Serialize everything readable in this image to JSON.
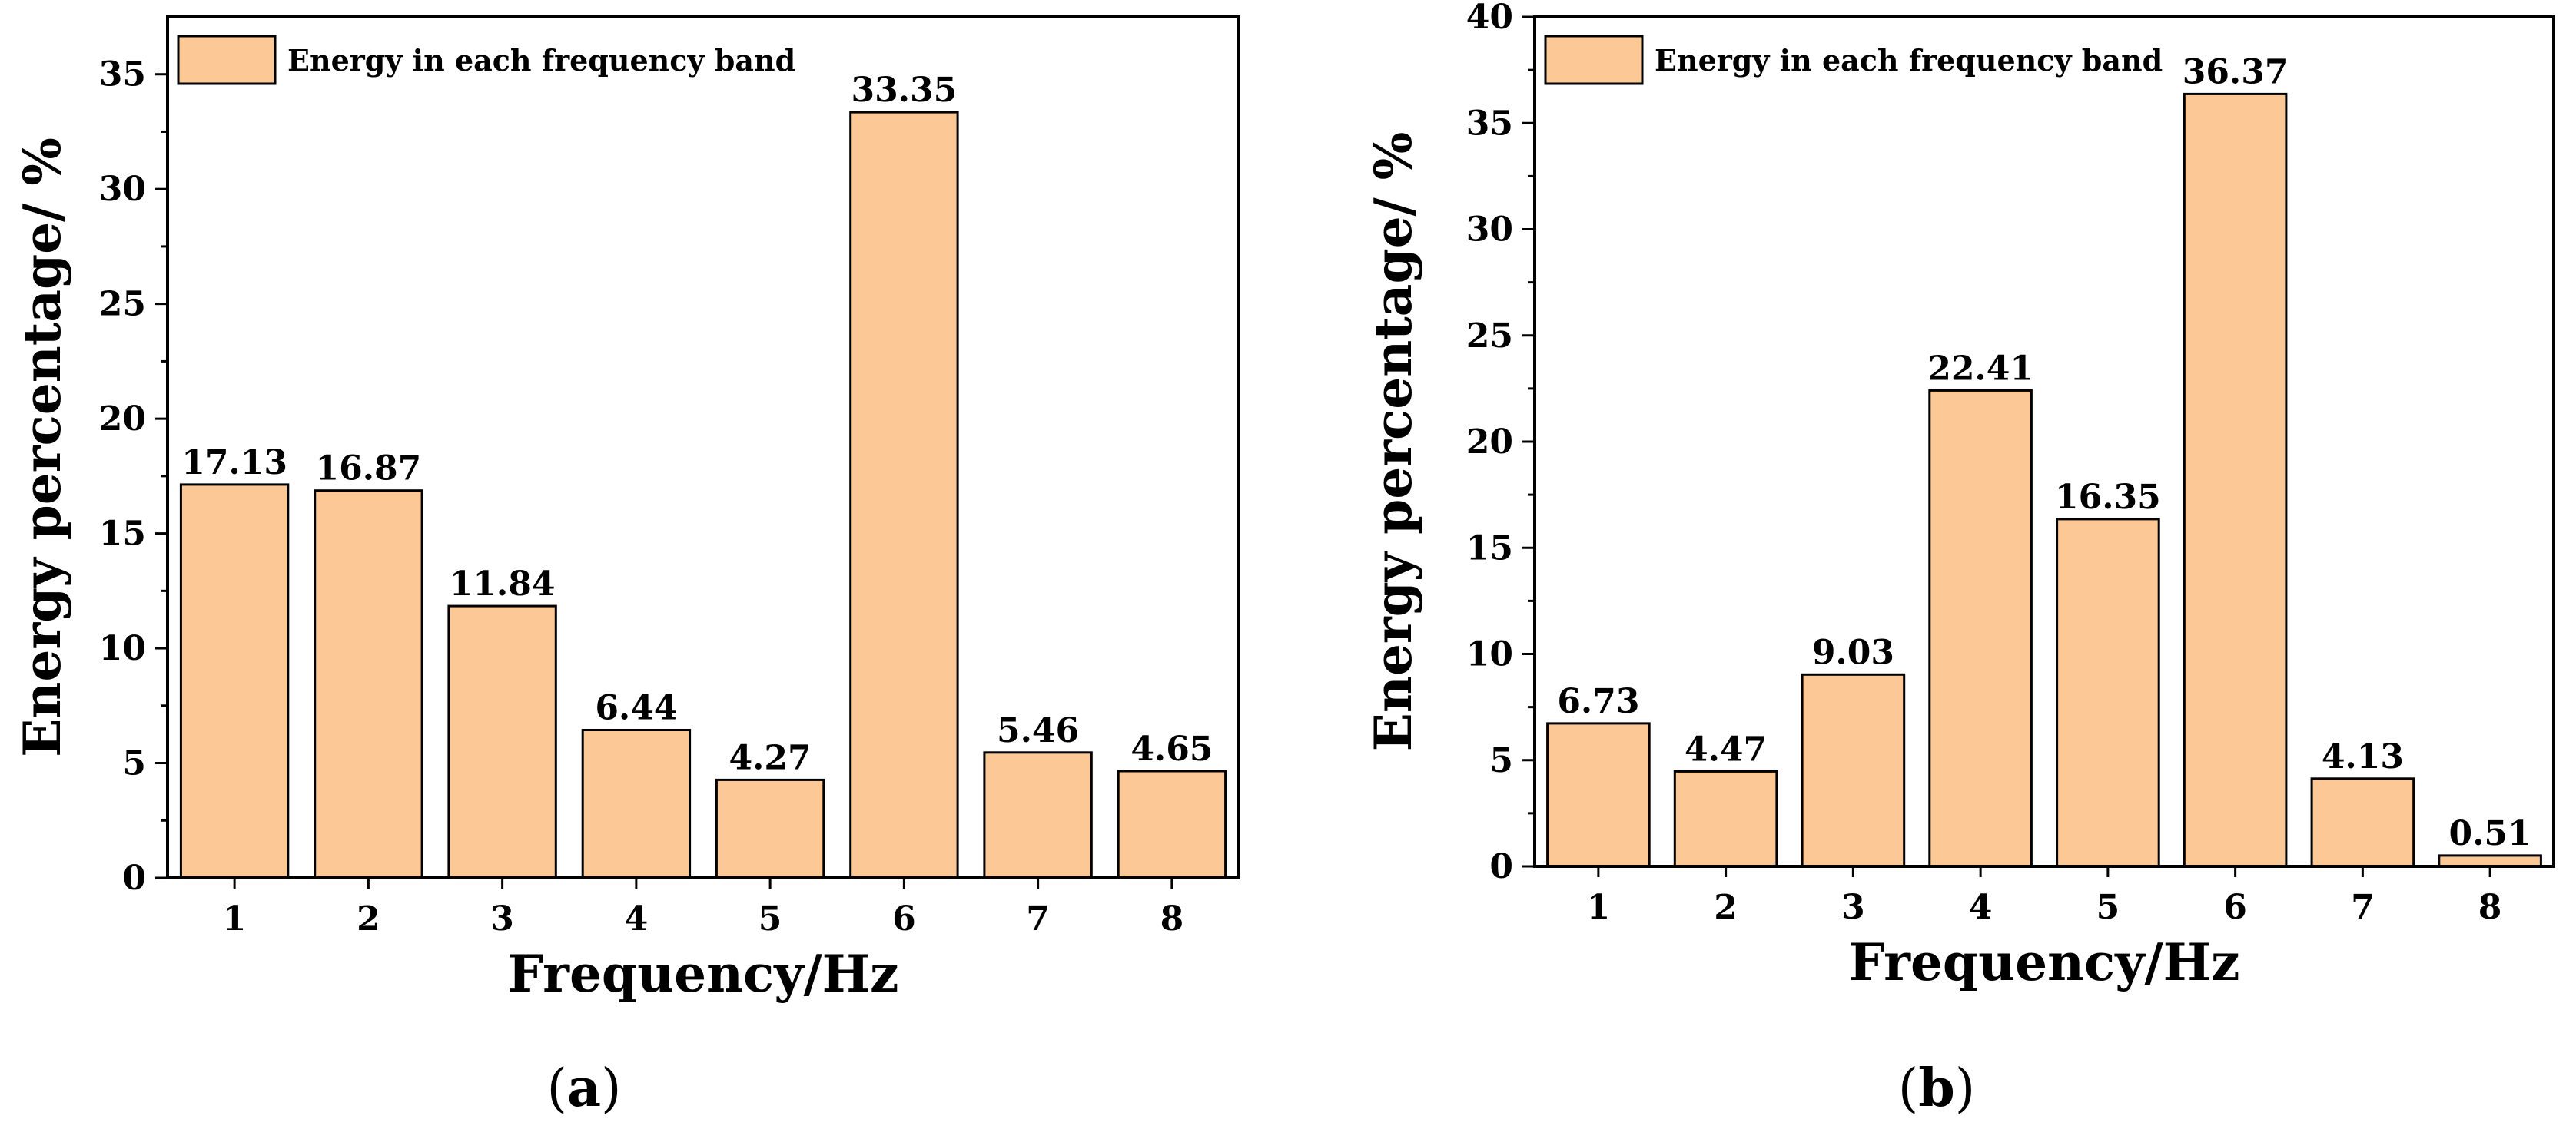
{
  "chart_data": [
    {
      "type": "bar",
      "panel_label": "a",
      "categories": [
        "1",
        "2",
        "3",
        "4",
        "5",
        "6",
        "7",
        "8"
      ],
      "values": [
        17.13,
        16.87,
        11.84,
        6.44,
        4.27,
        33.35,
        5.46,
        4.65
      ],
      "value_labels": [
        "17.13",
        "16.87",
        "11.84",
        "6.44",
        "4.27",
        "33.35",
        "5.46",
        "4.65"
      ],
      "xlabel": "Frequency/Hz",
      "ylabel": "Energy percentage/ %",
      "ylim": [
        0,
        37.5
      ],
      "yticks": [
        0,
        5,
        10,
        15,
        20,
        25,
        30,
        35
      ],
      "legend": "Energy in each frequency band",
      "legend_position": "top-left",
      "grid": false
    },
    {
      "type": "bar",
      "panel_label": "b",
      "categories": [
        "1",
        "2",
        "3",
        "4",
        "5",
        "6",
        "7",
        "8"
      ],
      "values": [
        6.73,
        4.47,
        9.03,
        22.41,
        16.35,
        36.37,
        4.13,
        0.51
      ],
      "value_labels": [
        "6.73",
        "4.47",
        "9.03",
        "22.41",
        "16.35",
        "36.37",
        "4.13",
        "0.51"
      ],
      "xlabel": "Frequency/Hz",
      "ylabel": "Energy percentage/ %",
      "ylim": [
        0,
        40
      ],
      "yticks": [
        0,
        5,
        10,
        15,
        20,
        25,
        30,
        35,
        40
      ],
      "legend": "Energy in each frequency band",
      "legend_position": "top-left",
      "grid": false
    }
  ],
  "captions": [
    {
      "open": "(",
      "letter": "a",
      "close": ")"
    },
    {
      "open": "(",
      "letter": "b",
      "close": ")"
    }
  ],
  "colors": {
    "bar_fill": "#FCC896",
    "stroke": "#000000"
  }
}
